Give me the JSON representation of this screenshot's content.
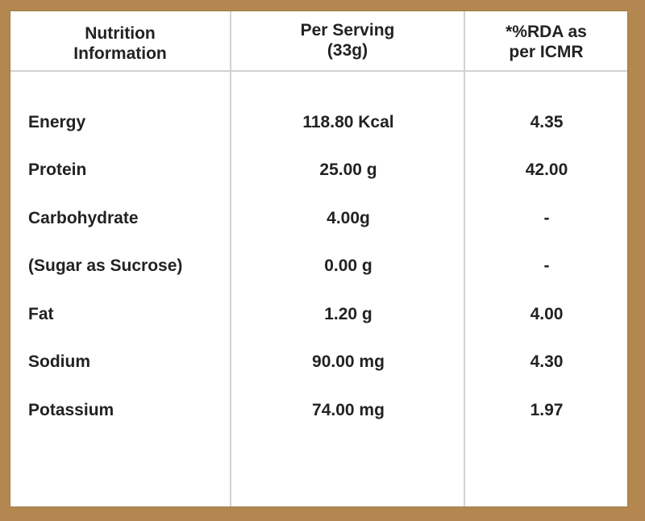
{
  "headers": {
    "nutrient": [
      "Nutrition",
      "Information"
    ],
    "per_serving": [
      "Per Serving",
      "(33g)"
    ],
    "rda": [
      "*%RDA as",
      "per ICMR"
    ]
  },
  "rows": [
    {
      "name": "Energy",
      "per_serving": "118.80 Kcal",
      "rda": "4.35"
    },
    {
      "name": "Protein",
      "per_serving": "25.00 g",
      "rda": "42.00"
    },
    {
      "name": "Carbohydrate",
      "per_serving": "4.00g",
      "rda": "-"
    },
    {
      "name": "(Sugar as Sucrose)",
      "per_serving": "0.00 g",
      "rda": "-"
    },
    {
      "name": "Fat",
      "per_serving": "1.20 g",
      "rda": "4.00"
    },
    {
      "name": "Sodium",
      "per_serving": "90.00 mg",
      "rda": "4.30"
    },
    {
      "name": "Potassium",
      "per_serving": "74.00 mg",
      "rda": "1.97"
    }
  ],
  "colors": {
    "frame": "#b3874f",
    "background": "#ffffff",
    "gridline": "#d2d2d2",
    "text": "#222222"
  }
}
